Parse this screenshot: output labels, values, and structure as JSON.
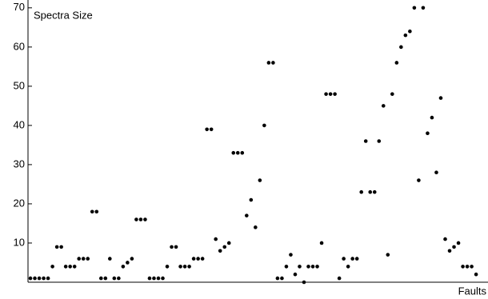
{
  "chart_data": {
    "type": "scatter",
    "title": "Spectra Size",
    "x_label": "Faults",
    "x": [
      1,
      2,
      3,
      4,
      5,
      6,
      7,
      8,
      9,
      10,
      11,
      12,
      13,
      14,
      15,
      16,
      17,
      18,
      19,
      20,
      21,
      22,
      23,
      24,
      25,
      26,
      27,
      28,
      29,
      30,
      31,
      32,
      33,
      34,
      35,
      36,
      37,
      38,
      39,
      40,
      41,
      42,
      43,
      44,
      45,
      46,
      47,
      48,
      49,
      50,
      51,
      52,
      53,
      54,
      55,
      56,
      57,
      58,
      59,
      60,
      61,
      62,
      63,
      64,
      65,
      66,
      67,
      68,
      69,
      70,
      71,
      72,
      73,
      74,
      75,
      76,
      77,
      78,
      79,
      80,
      81,
      82,
      83,
      84,
      85,
      86,
      87,
      88,
      89,
      90,
      91,
      92,
      93,
      94,
      95,
      96,
      97,
      98,
      99,
      100,
      101,
      102
    ],
    "values": [
      1,
      1,
      1,
      1,
      1,
      4,
      9,
      9,
      4,
      4,
      4,
      6,
      6,
      6,
      18,
      18,
      1,
      1,
      6,
      1,
      1,
      4,
      5,
      6,
      16,
      16,
      16,
      1,
      1,
      1,
      1,
      4,
      9,
      9,
      4,
      4,
      4,
      6,
      6,
      6,
      39,
      39,
      11,
      8,
      9,
      10,
      33,
      33,
      33,
      17,
      21,
      14,
      26,
      40,
      56,
      56,
      1,
      1,
      4,
      7,
      2,
      4,
      0,
      4,
      4,
      4,
      10,
      48,
      48,
      48,
      1,
      6,
      4,
      6,
      6,
      23,
      36,
      23,
      23,
      36,
      45,
      7,
      48,
      56,
      60,
      63,
      64,
      70,
      26,
      70,
      38,
      42,
      28,
      47,
      11,
      8,
      9,
      10,
      4,
      4,
      4,
      2
    ],
    "color": "#000000",
    "xlim": [
      0.45,
      104.7
    ],
    "ylim": [
      0,
      72
    ],
    "yticks": [
      10,
      20,
      30,
      40,
      50,
      60,
      70
    ]
  }
}
